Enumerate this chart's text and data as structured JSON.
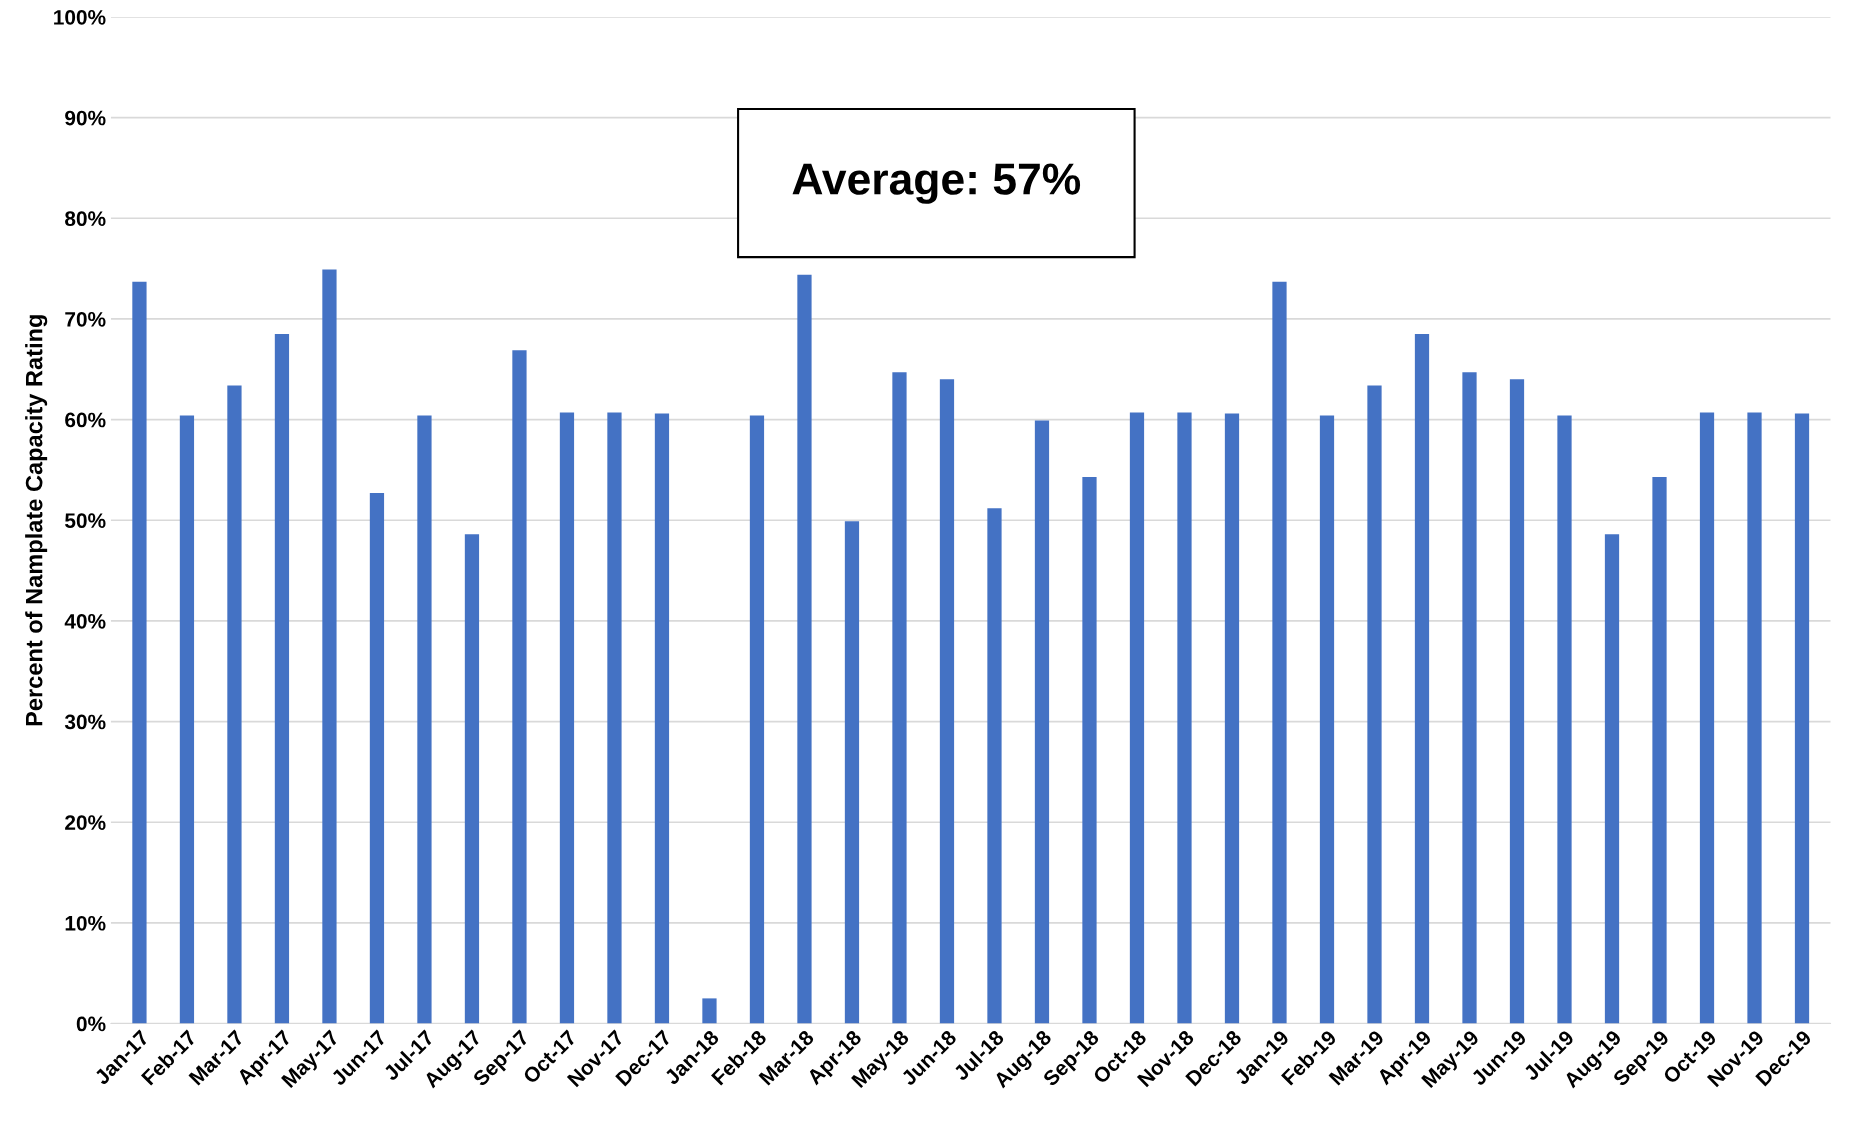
{
  "chart_data": {
    "type": "bar",
    "ylabel": "Percent of Namplate Capacity Rating",
    "categories": [
      "Jan-17",
      "Feb-17",
      "Mar-17",
      "Apr-17",
      "May-17",
      "Jun-17",
      "Jul-17",
      "Aug-17",
      "Sep-17",
      "Oct-17",
      "Nov-17",
      "Dec-17",
      "Jan-18",
      "Feb-18",
      "Mar-18",
      "Apr-18",
      "May-18",
      "Jun-18",
      "Jul-18",
      "Aug-18",
      "Sep-18",
      "Oct-18",
      "Nov-18",
      "Dec-18",
      "Jan-19",
      "Feb-19",
      "Mar-19",
      "Apr-19",
      "May-19",
      "Jun-19",
      "Jul-19",
      "Aug-19",
      "Sep-19",
      "Oct-19",
      "Nov-19",
      "Dec-19"
    ],
    "values": [
      73.7,
      60.4,
      63.4,
      68.5,
      74.9,
      52.7,
      60.4,
      48.6,
      66.9,
      60.7,
      60.7,
      60.6,
      2.5,
      60.4,
      74.4,
      49.9,
      64.7,
      64.0,
      51.2,
      59.9,
      54.3,
      60.7,
      60.7,
      60.6,
      73.7,
      60.4,
      63.4,
      68.5,
      64.7,
      64.0,
      60.4,
      48.6,
      54.3,
      60.7,
      60.7,
      60.6
    ],
    "color": "#4472c4",
    "ylim": [
      0,
      100
    ],
    "yticks": [
      {
        "value": 0,
        "label": "0%"
      },
      {
        "value": 10,
        "label": "10%"
      },
      {
        "value": 20,
        "label": "20%"
      },
      {
        "value": 30,
        "label": "30%"
      },
      {
        "value": 40,
        "label": "40%"
      },
      {
        "value": 50,
        "label": "50%"
      },
      {
        "value": 60,
        "label": "60%"
      },
      {
        "value": 70,
        "label": "70%"
      },
      {
        "value": 80,
        "label": "80%"
      },
      {
        "value": 90,
        "label": "90%"
      },
      {
        "value": 100,
        "label": "100%"
      }
    ],
    "grid": "y",
    "legend": false,
    "annotations": [
      "Average: 57%"
    ]
  }
}
